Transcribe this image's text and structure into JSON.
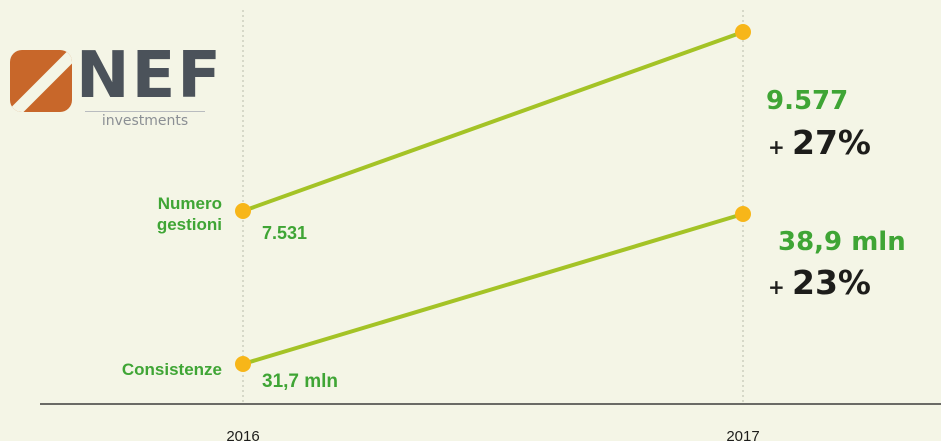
{
  "logo": {
    "brand": "NEF",
    "tagline": "investments",
    "colors": {
      "mark": "#c8672a",
      "text": "#4b525a"
    }
  },
  "colors": {
    "line": "#a4c326",
    "marker": "#f7b619",
    "label_green": "#3fa535",
    "text_dark": "#1d1d1b",
    "background": "#f4f5e6"
  },
  "chart_data": {
    "type": "line",
    "x": [
      "2016",
      "2017"
    ],
    "series": [
      {
        "name": "Numero gestioni",
        "values": [
          7531,
          9577
        ],
        "value_labels": [
          "7.531",
          "9.577"
        ],
        "change_label": "27%"
      },
      {
        "name": "Consistenze",
        "values": [
          31.7,
          38.9
        ],
        "value_labels": [
          "31,7 mln",
          "38,9 mln"
        ],
        "change_label": "23%"
      }
    ],
    "change_prefix": "+",
    "grid": "vertical dotted lines at each year",
    "legend": "series names left of the 2016 markers"
  }
}
